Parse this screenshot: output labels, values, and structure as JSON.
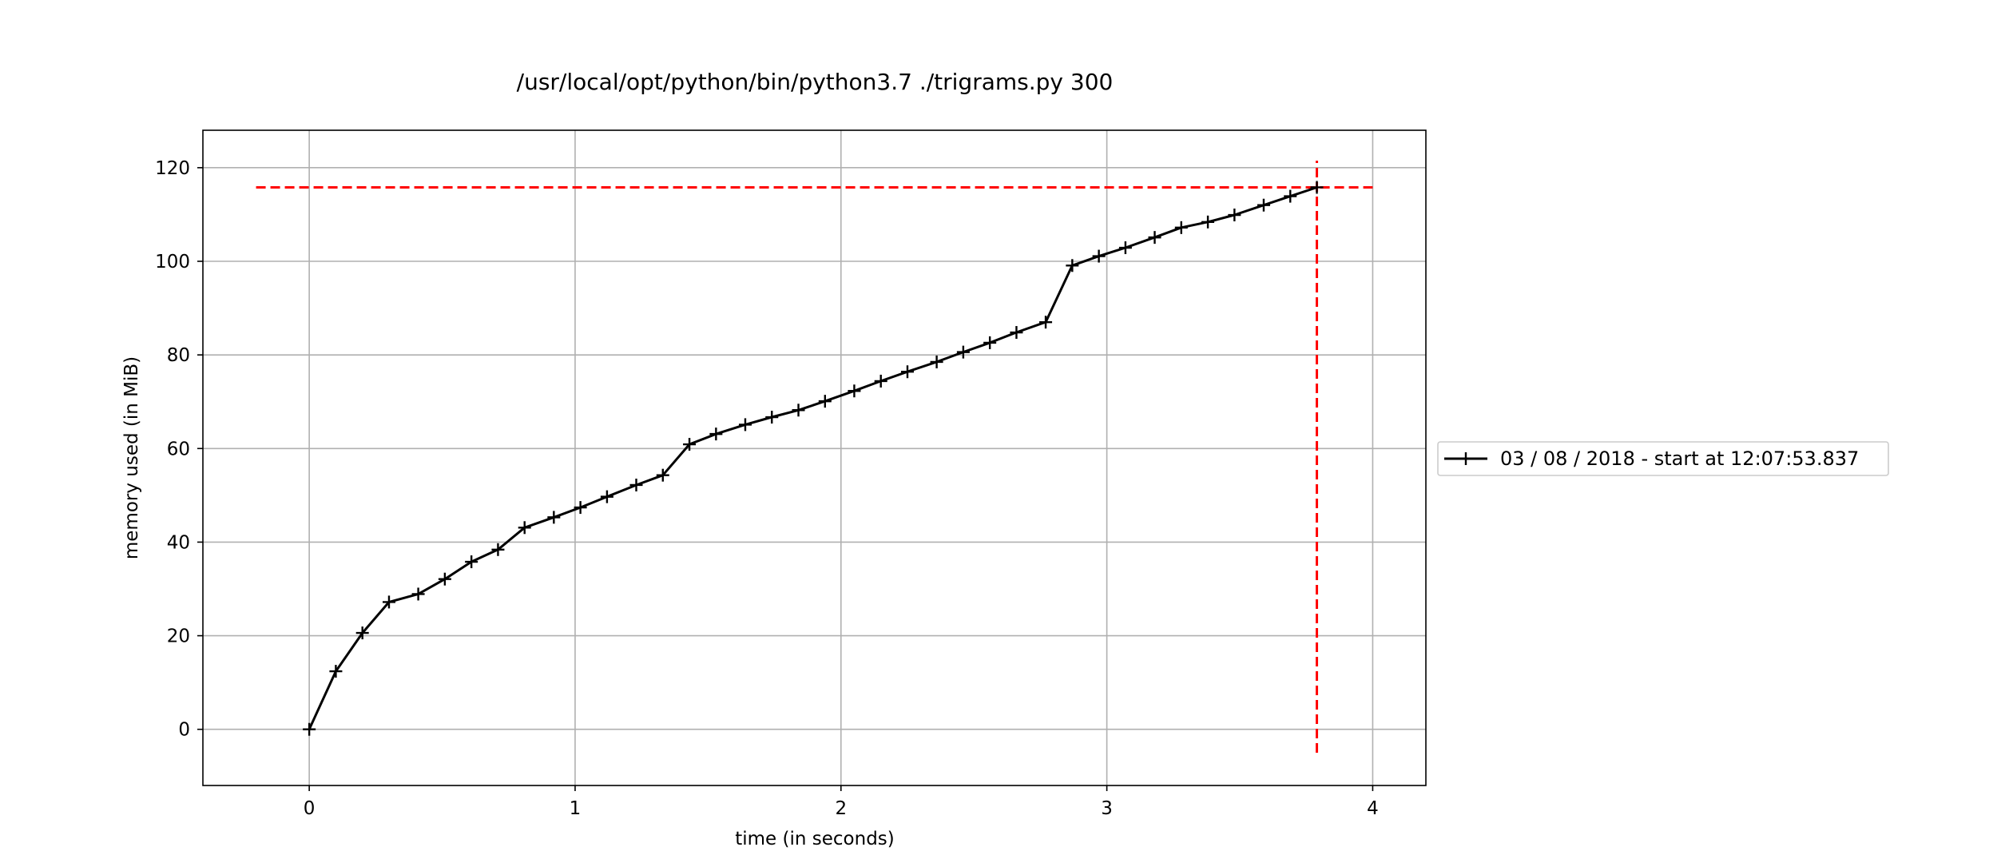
{
  "chart_data": {
    "type": "line",
    "title": "/usr/local/opt/python/bin/python3.7 ./trigrams.py 300",
    "xlabel": "time (in seconds)",
    "ylabel": "memory used (in MiB)",
    "xlim": [
      -0.4,
      4.2
    ],
    "ylim": [
      -12,
      128
    ],
    "xticks": [
      0,
      1,
      2,
      3,
      4
    ],
    "yticks": [
      0,
      20,
      40,
      60,
      80,
      100,
      120
    ],
    "grid": true,
    "legend_position": "right-outside",
    "series": [
      {
        "name": "03 / 08 / 2018 - start at 12:07:53.837",
        "color": "#000000",
        "marker": "plus",
        "x": [
          0.0,
          0.1,
          0.2,
          0.3,
          0.41,
          0.51,
          0.61,
          0.71,
          0.81,
          0.92,
          1.02,
          1.12,
          1.23,
          1.33,
          1.43,
          1.53,
          1.64,
          1.74,
          1.84,
          1.94,
          2.05,
          2.15,
          2.25,
          2.36,
          2.46,
          2.56,
          2.66,
          2.77,
          2.87,
          2.97,
          3.07,
          3.18,
          3.28,
          3.38,
          3.48,
          3.59,
          3.69,
          3.79
        ],
        "y": [
          0.0,
          12.4,
          20.6,
          27.2,
          28.9,
          32.1,
          35.8,
          38.4,
          43.1,
          45.3,
          47.4,
          49.7,
          52.2,
          54.3,
          60.9,
          63.1,
          65.1,
          66.7,
          68.2,
          70.1,
          72.3,
          74.4,
          76.4,
          78.5,
          80.6,
          82.6,
          84.8,
          87.0,
          99.1,
          101.1,
          102.9,
          105.1,
          107.2,
          108.4,
          109.9,
          112.0,
          113.9,
          115.8
        ]
      }
    ],
    "annotations": [
      {
        "type": "hline",
        "y": 115.8,
        "x_from": -0.2,
        "x_to": 4.0,
        "color": "#ff0000",
        "style": "dashed"
      },
      {
        "type": "vline",
        "x": 3.79,
        "y_from": -5,
        "y_to": 121.5,
        "color": "#ff0000",
        "style": "dashed"
      }
    ]
  }
}
